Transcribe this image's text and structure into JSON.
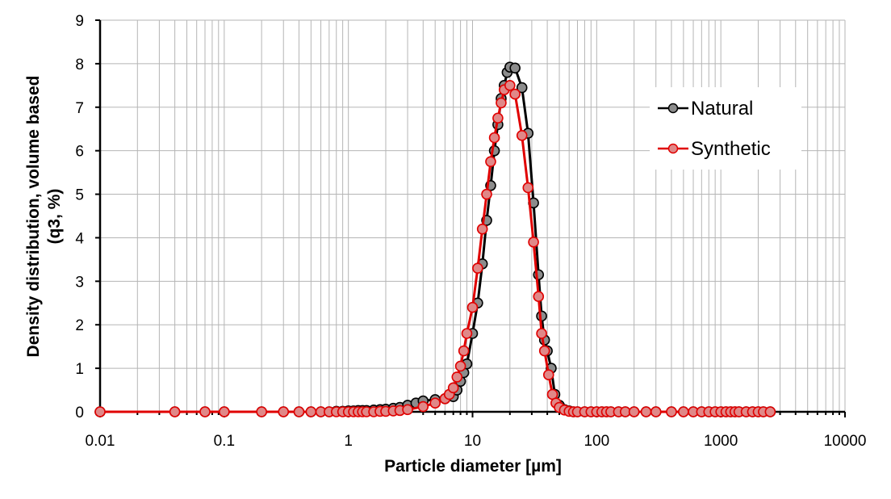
{
  "chart_data": {
    "type": "scatter",
    "xscale": "log",
    "xlim": [
      0.01,
      10000
    ],
    "ylim": [
      0,
      9
    ],
    "x_ticks": [
      "0.01",
      "0.1",
      "1",
      "10",
      "100",
      "1000",
      "10000"
    ],
    "y_ticks": [
      "0",
      "1",
      "2",
      "3",
      "4",
      "5",
      "6",
      "7",
      "8",
      "9"
    ],
    "xlabel": "Particle diameter [µm]",
    "ylabel_line1": "Density distribution,  volume based",
    "ylabel_line2": "(q3, %)",
    "grid": "on",
    "legend_position": "right",
    "series": [
      {
        "name": "Natural",
        "line_color": "#000000",
        "marker_color": "#8c8c8c",
        "points": [
          [
            0.01,
            0
          ],
          [
            0.04,
            0
          ],
          [
            0.07,
            0
          ],
          [
            0.1,
            0
          ],
          [
            0.2,
            0
          ],
          [
            0.3,
            0
          ],
          [
            0.4,
            0
          ],
          [
            0.5,
            0
          ],
          [
            0.6,
            0
          ],
          [
            0.7,
            0
          ],
          [
            0.8,
            0.01
          ],
          [
            0.9,
            0.01
          ],
          [
            1.0,
            0.02
          ],
          [
            1.1,
            0.02
          ],
          [
            1.2,
            0.03
          ],
          [
            1.3,
            0.03
          ],
          [
            1.4,
            0.03
          ],
          [
            1.6,
            0.04
          ],
          [
            1.8,
            0.05
          ],
          [
            2.0,
            0.06
          ],
          [
            2.3,
            0.08
          ],
          [
            2.6,
            0.1
          ],
          [
            3.0,
            0.15
          ],
          [
            3.5,
            0.2
          ],
          [
            4.0,
            0.25
          ],
          [
            5.0,
            0.28
          ],
          [
            6.0,
            0.3
          ],
          [
            7.0,
            0.35
          ],
          [
            7.5,
            0.5
          ],
          [
            8.0,
            0.7
          ],
          [
            8.5,
            0.9
          ],
          [
            9.0,
            1.1
          ],
          [
            10.0,
            1.8
          ],
          [
            11.0,
            2.5
          ],
          [
            12.0,
            3.4
          ],
          [
            13.0,
            4.4
          ],
          [
            14.0,
            5.2
          ],
          [
            15.0,
            6.0
          ],
          [
            16.0,
            6.6
          ],
          [
            17.0,
            7.2
          ],
          [
            18.0,
            7.5
          ],
          [
            19.0,
            7.8
          ],
          [
            20.0,
            7.92
          ],
          [
            22.0,
            7.9
          ],
          [
            25.0,
            7.45
          ],
          [
            28.0,
            6.4
          ],
          [
            31.0,
            4.8
          ],
          [
            34.0,
            3.15
          ],
          [
            36.0,
            2.2
          ],
          [
            38.0,
            1.65
          ],
          [
            40.0,
            1.4
          ],
          [
            43.0,
            1.0
          ],
          [
            46.0,
            0.4
          ],
          [
            50.0,
            0.15
          ],
          [
            55.0,
            0.05
          ],
          [
            60.0,
            0.02
          ],
          [
            65.0,
            0
          ],
          [
            70.0,
            0
          ],
          [
            80.0,
            0
          ],
          [
            90.0,
            0
          ],
          [
            100.0,
            0
          ],
          [
            110.0,
            0
          ],
          [
            120.0,
            0
          ],
          [
            130.0,
            0
          ],
          [
            150.0,
            0
          ],
          [
            170.0,
            0
          ],
          [
            200.0,
            0
          ],
          [
            250.0,
            0
          ],
          [
            300.0,
            0
          ],
          [
            400.0,
            0
          ],
          [
            500.0,
            0
          ],
          [
            600.0,
            0
          ],
          [
            700.0,
            0
          ],
          [
            800.0,
            0
          ],
          [
            900.0,
            0
          ],
          [
            1000,
            0
          ],
          [
            1100,
            0
          ],
          [
            1200,
            0
          ],
          [
            1300,
            0
          ],
          [
            1400,
            0
          ],
          [
            1600,
            0
          ],
          [
            1800,
            0
          ],
          [
            2000,
            0
          ],
          [
            2200,
            0
          ],
          [
            2500,
            0
          ]
        ]
      },
      {
        "name": "Synthetic",
        "line_color": "#e00000",
        "marker_color": "#e08888",
        "points": [
          [
            0.01,
            0
          ],
          [
            0.04,
            0
          ],
          [
            0.07,
            0
          ],
          [
            0.1,
            0
          ],
          [
            0.2,
            0
          ],
          [
            0.3,
            0
          ],
          [
            0.4,
            0
          ],
          [
            0.5,
            0
          ],
          [
            0.6,
            0
          ],
          [
            0.7,
            0
          ],
          [
            0.8,
            0
          ],
          [
            0.9,
            0
          ],
          [
            1.0,
            0
          ],
          [
            1.1,
            0
          ],
          [
            1.2,
            0
          ],
          [
            1.3,
            0
          ],
          [
            1.4,
            0
          ],
          [
            1.6,
            0
          ],
          [
            1.8,
            0.01
          ],
          [
            2.0,
            0.01
          ],
          [
            2.3,
            0.02
          ],
          [
            2.6,
            0.03
          ],
          [
            3.0,
            0.05
          ],
          [
            4.0,
            0.12
          ],
          [
            5.0,
            0.2
          ],
          [
            6.0,
            0.3
          ],
          [
            6.5,
            0.4
          ],
          [
            7.0,
            0.55
          ],
          [
            7.5,
            0.8
          ],
          [
            8.0,
            1.05
          ],
          [
            8.5,
            1.4
          ],
          [
            9.0,
            1.8
          ],
          [
            10.0,
            2.4
          ],
          [
            11.0,
            3.3
          ],
          [
            12.0,
            4.2
          ],
          [
            13.0,
            5.0
          ],
          [
            14.0,
            5.75
          ],
          [
            15.0,
            6.3
          ],
          [
            16.0,
            6.75
          ],
          [
            17.0,
            7.1
          ],
          [
            18.0,
            7.4
          ],
          [
            20.0,
            7.5
          ],
          [
            22.0,
            7.3
          ],
          [
            25.0,
            6.35
          ],
          [
            28.0,
            5.15
          ],
          [
            31.0,
            3.9
          ],
          [
            34.0,
            2.65
          ],
          [
            36.0,
            1.8
          ],
          [
            38.0,
            1.4
          ],
          [
            41.0,
            0.85
          ],
          [
            44.0,
            0.4
          ],
          [
            47.0,
            0.2
          ],
          [
            50.0,
            0.1
          ],
          [
            55.0,
            0.04
          ],
          [
            60.0,
            0.01
          ],
          [
            65.0,
            0
          ],
          [
            70.0,
            0
          ],
          [
            80.0,
            0
          ],
          [
            90.0,
            0
          ],
          [
            100.0,
            0
          ],
          [
            110.0,
            0
          ],
          [
            120.0,
            0
          ],
          [
            130.0,
            0
          ],
          [
            150.0,
            0
          ],
          [
            170.0,
            0
          ],
          [
            200.0,
            0
          ],
          [
            250.0,
            0
          ],
          [
            300.0,
            0
          ],
          [
            400.0,
            0
          ],
          [
            500.0,
            0
          ],
          [
            600.0,
            0
          ],
          [
            700.0,
            0
          ],
          [
            800.0,
            0
          ],
          [
            900.0,
            0
          ],
          [
            1000,
            0
          ],
          [
            1100,
            0
          ],
          [
            1200,
            0
          ],
          [
            1300,
            0
          ],
          [
            1400,
            0
          ],
          [
            1600,
            0
          ],
          [
            1800,
            0
          ],
          [
            2000,
            0
          ],
          [
            2200,
            0
          ],
          [
            2500,
            0
          ]
        ]
      }
    ]
  }
}
